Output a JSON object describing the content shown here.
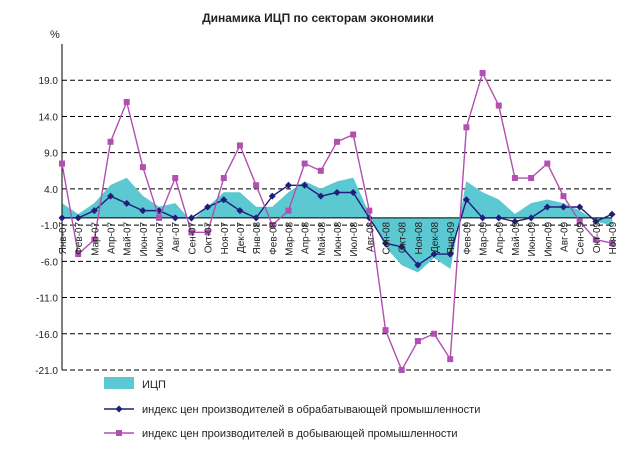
{
  "chart_data": {
    "type": "line",
    "title": "Динамика ИЦП по секторам экономики",
    "ylabel": "%",
    "ylim": [
      -21.0,
      24.0
    ],
    "yticks": [
      "19.0",
      "14.0",
      "9.0",
      "4.0",
      "-1.0",
      "-6.0",
      "-11.0",
      "-16.0",
      "-21.0"
    ],
    "ytick_values": [
      19,
      14,
      9,
      4,
      -1,
      -6,
      -11,
      -16,
      -21
    ],
    "grid": "horizontal dashed",
    "categories": [
      "Янв-07",
      "Фев-07",
      "Мар-07",
      "Апр-07",
      "Май-07",
      "Июн-07",
      "Июл-07",
      "Авг-07",
      "Сен-07",
      "Окт-07",
      "Ноя-07",
      "Дек-07",
      "Янв-08",
      "Фев-08",
      "Мар-08",
      "Апр-08",
      "Май-08",
      "Июн-08",
      "Июл-08",
      "Авг-08",
      "Сен-08",
      "Окт-08",
      "Ноя-08",
      "Дек-08",
      "Янв-09",
      "Фев-09",
      "Мар-09",
      "Апр-09",
      "Май-09",
      "Июн-09",
      "Июл-09",
      "Авг-09",
      "Сен-09",
      "Окт-09",
      "Ноя-09"
    ],
    "series": [
      {
        "name": "ИЦП",
        "kind": "area",
        "color": "#5BC8D2",
        "values": [
          2.0,
          0.5,
          2.0,
          4.5,
          5.5,
          3.0,
          1.5,
          2.0,
          -0.5,
          1.5,
          3.5,
          3.5,
          1.5,
          1.5,
          3.5,
          5.0,
          4.0,
          5.0,
          5.5,
          0.5,
          -4.0,
          -6.5,
          -7.5,
          -5.5,
          -7.0,
          5.0,
          3.5,
          2.5,
          0.5,
          2.0,
          2.5,
          2.0,
          1.0,
          -0.5,
          -1.0
        ]
      },
      {
        "name": "индекс цен производителей в обрабатывающей промышленности",
        "kind": "line",
        "color": "#1F1F7A",
        "values": [
          0.0,
          0.0,
          1.0,
          3.0,
          2.0,
          1.0,
          1.0,
          0.0,
          0.0,
          1.5,
          2.5,
          1.0,
          0.0,
          3.0,
          4.5,
          4.5,
          3.0,
          3.5,
          3.5,
          0.0,
          -3.5,
          -4.0,
          -6.5,
          -5.0,
          -5.0,
          2.5,
          0.0,
          0.0,
          -0.5,
          0.0,
          1.5,
          1.5,
          1.5,
          -0.5,
          0.5
        ]
      },
      {
        "name": "индекс цен производителей в добывающей промышленности",
        "kind": "line",
        "color": "#B050B0",
        "values": [
          7.5,
          -5.0,
          -3.0,
          10.5,
          16.0,
          7.0,
          0.0,
          5.5,
          -2.0,
          -2.0,
          5.5,
          10.0,
          4.5,
          -1.0,
          1.0,
          7.5,
          6.5,
          10.5,
          11.5,
          1.0,
          -15.5,
          -21.0,
          -17.0,
          -16.0,
          -19.5,
          12.5,
          20.0,
          15.5,
          5.5,
          5.5,
          7.5,
          3.0,
          -0.5,
          -3.0,
          -3.5
        ]
      }
    ]
  }
}
